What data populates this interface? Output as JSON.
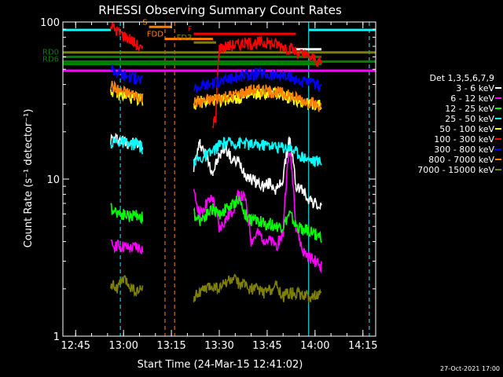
{
  "chart_data": {
    "type": "line",
    "title": "RHESSI Observing Summary Count Rates",
    "xlabel": "Start Time (24-Mar-15 12:41:02)",
    "ylabel": "Count Rate (s⁻¹ detector⁻¹)",
    "yscale": "log",
    "ylim": [
      1,
      100
    ],
    "xlim": [
      "12:41",
      "14:19"
    ],
    "x_ticks": [
      "12:45",
      "13:00",
      "13:15",
      "13:30",
      "13:45",
      "14:00",
      "14:15"
    ],
    "y_ticks": [
      "1",
      "10",
      "100"
    ],
    "legend_title": "Det 1,3,5,6,7,9",
    "legend_position": "right",
    "timestamp": "27-Oct-2021 17:00",
    "series": [
      {
        "name": "3 - 6 keV",
        "color": "#ffffff",
        "segments": [
          {
            "x": [
              "12:56",
              "12:58",
              "13:00",
              "13:02",
              "13:04",
              "13:06"
            ],
            "y": [
              18,
              18,
              17.5,
              17,
              17,
              16
            ]
          },
          {
            "x": [
              "13:22",
              "13:24",
              "13:26",
              "13:28",
              "13:30",
              "13:32",
              "13:34",
              "13:36",
              "13:38",
              "13:40",
              "13:42",
              "13:44",
              "13:46",
              "13:48",
              "13:50",
              "13:52",
              "13:54",
              "13:56",
              "13:58",
              "14:00",
              "14:02"
            ],
            "y": [
              12,
              17,
              14,
              11,
              14,
              16,
              13,
              13,
              11,
              10,
              9.5,
              9,
              9.5,
              8.5,
              10,
              18,
              9,
              8.5,
              7.5,
              7,
              6.5
            ]
          }
        ]
      },
      {
        "name": "6 - 12 keV",
        "color": "#ff00ff",
        "segments": [
          {
            "x": [
              "12:56",
              "12:58",
              "13:00",
              "13:02",
              "13:04",
              "13:06"
            ],
            "y": [
              3.8,
              3.8,
              3.7,
              3.6,
              3.7,
              3.6
            ]
          },
          {
            "x": [
              "13:22",
              "13:24",
              "13:26",
              "13:28",
              "13:30",
              "13:32",
              "13:34",
              "13:36",
              "13:38",
              "13:40",
              "13:42",
              "13:44",
              "13:46",
              "13:48",
              "13:50",
              "13:52",
              "13:54",
              "13:56",
              "13:58",
              "14:00",
              "14:02"
            ],
            "y": [
              8,
              6,
              7,
              7.5,
              4.8,
              5.5,
              6.2,
              8,
              7.5,
              4,
              4.5,
              4.2,
              4,
              3.8,
              4.5,
              15,
              5,
              3.5,
              3.2,
              3,
              2.8
            ]
          }
        ]
      },
      {
        "name": "12 - 25 keV",
        "color": "#00ff00",
        "segments": [
          {
            "x": [
              "12:56",
              "12:58",
              "13:00",
              "13:02",
              "13:04",
              "13:06"
            ],
            "y": [
              6.5,
              6.2,
              6,
              5.8,
              6,
              5.7
            ]
          },
          {
            "x": [
              "13:22",
              "13:24",
              "13:26",
              "13:28",
              "13:30",
              "13:32",
              "13:34",
              "13:36",
              "13:38",
              "13:40",
              "13:42",
              "13:44",
              "13:46",
              "13:48",
              "13:50",
              "13:52",
              "13:54",
              "13:56",
              "13:58",
              "14:00",
              "14:02"
            ],
            "y": [
              6,
              5.5,
              6,
              6.5,
              6,
              6.5,
              6.8,
              7.5,
              6,
              5.5,
              5.5,
              5.2,
              5.2,
              5,
              5,
              6,
              5,
              4.8,
              4.7,
              4.5,
              4.3
            ]
          }
        ]
      },
      {
        "name": "25 - 50 keV",
        "color": "#00ffff",
        "segments": [
          {
            "x": [
              "12:56",
              "12:58",
              "13:00",
              "13:02",
              "13:04",
              "13:06"
            ],
            "y": [
              17,
              17.5,
              17,
              16.5,
              17,
              15.5
            ]
          },
          {
            "x": [
              "13:22",
              "13:24",
              "13:26",
              "13:28",
              "13:30",
              "13:32",
              "13:34",
              "13:36",
              "13:38",
              "13:40",
              "13:42",
              "13:44",
              "13:46",
              "13:48",
              "13:50",
              "13:52",
              "13:54",
              "13:56",
              "13:58",
              "14:00",
              "14:02"
            ],
            "y": [
              13,
              13.5,
              14,
              15,
              16.5,
              17,
              17,
              17,
              17,
              16.5,
              16.5,
              16.5,
              16.5,
              16,
              16,
              16,
              15,
              14,
              13.5,
              13,
              13
            ]
          }
        ]
      },
      {
        "name": "50 - 100 keV",
        "color": "#ffff00",
        "segments": [
          {
            "x": [
              "12:56",
              "12:58",
              "13:00",
              "13:02",
              "13:04",
              "13:06"
            ],
            "y": [
              37,
              35,
              34,
              33,
              33,
              32
            ]
          },
          {
            "x": [
              "13:22",
              "13:24",
              "13:26",
              "13:28",
              "13:30",
              "13:32",
              "13:34",
              "13:36",
              "13:38",
              "13:40",
              "13:42",
              "13:44",
              "13:46",
              "13:48",
              "13:50",
              "13:52",
              "13:54",
              "13:56",
              "13:58",
              "14:00",
              "14:02"
            ],
            "y": [
              30,
              31,
              31,
              32,
              32,
              32,
              33,
              33,
              33,
              34,
              35,
              35,
              35,
              35,
              34,
              33,
              32,
              31,
              30,
              30,
              29
            ]
          }
        ]
      },
      {
        "name": "100 - 300 keV",
        "color": "#ff0000",
        "segments": [
          {
            "x": [
              "12:56",
              "12:58",
              "13:00",
              "13:02",
              "13:04",
              "13:06"
            ],
            "y": [
              95,
              88,
              82,
              78,
              72,
              65
            ]
          },
          {
            "x": [
              "13:28",
              "13:29",
              "13:30",
              "13:32",
              "13:34",
              "13:36",
              "13:38",
              "13:40",
              "13:42",
              "13:44",
              "13:46",
              "13:48",
              "13:50",
              "13:52",
              "13:54",
              "13:56",
              "13:58",
              "14:00",
              "14:02"
            ],
            "y": [
              22,
              25,
              68,
              70,
              71,
              72,
              73,
              73,
              74,
              74,
              73,
              72,
              70,
              68,
              65,
              62,
              60,
              58,
              55
            ]
          }
        ]
      },
      {
        "name": "300 - 800 keV",
        "color": "#0000ff",
        "segments": [
          {
            "x": [
              "12:56",
              "12:58",
              "13:00",
              "13:02",
              "13:04",
              "13:06"
            ],
            "y": [
              52,
              48,
              46,
              45,
              44,
              42
            ]
          },
          {
            "x": [
              "13:22",
              "13:24",
              "13:26",
              "13:28",
              "13:30",
              "13:32",
              "13:34",
              "13:36",
              "13:38",
              "13:40",
              "13:42",
              "13:44",
              "13:46",
              "13:48",
              "13:50",
              "13:52",
              "13:54",
              "13:56",
              "13:58",
              "14:00",
              "14:02"
            ],
            "y": [
              38,
              39,
              40,
              41,
              42,
              43,
              44,
              45,
              46,
              46,
              47,
              47,
              46,
              46,
              45,
              44,
              43,
              42,
              41,
              40,
              39
            ]
          }
        ]
      },
      {
        "name": "800 - 7000 keV",
        "color": "#ff8000",
        "segments": [
          {
            "x": [
              "12:56",
              "12:58",
              "13:00",
              "13:02",
              "13:04",
              "13:06"
            ],
            "y": [
              40,
              37,
              36,
              35,
              34,
              33
            ]
          },
          {
            "x": [
              "13:22",
              "13:24",
              "13:26",
              "13:28",
              "13:30",
              "13:32",
              "13:34",
              "13:36",
              "13:38",
              "13:40",
              "13:42",
              "13:44",
              "13:46",
              "13:48",
              "13:50",
              "13:52",
              "13:54",
              "13:56",
              "13:58",
              "14:00",
              "14:02"
            ],
            "y": [
              31,
              31,
              32,
              32,
              33,
              34,
              34,
              35,
              36,
              37,
              37,
              37,
              36,
              36,
              35,
              34,
              33,
              32,
              31,
              30,
              29
            ]
          }
        ]
      },
      {
        "name": "7000 - 15000 keV",
        "color": "#808000",
        "segments": [
          {
            "x": [
              "12:56",
              "12:58",
              "13:00",
              "13:02",
              "13:04",
              "13:06"
            ],
            "y": [
              2.2,
              2.0,
              2.3,
              2.1,
              1.9,
              2.0
            ]
          },
          {
            "x": [
              "13:22",
              "13:24",
              "13:26",
              "13:28",
              "13:30",
              "13:32",
              "13:34",
              "13:36",
              "13:38",
              "13:40",
              "13:42",
              "13:44",
              "13:46",
              "13:48",
              "13:50",
              "13:52",
              "13:54",
              "13:56",
              "13:58",
              "14:00",
              "14:02"
            ],
            "y": [
              1.8,
              1.9,
              2.0,
              2.1,
              2.0,
              2.2,
              2.3,
              2.2,
              2.1,
              2.0,
              2.0,
              1.9,
              2.0,
              2.1,
              1.8,
              1.9,
              1.9,
              1.8,
              1.8,
              1.8,
              1.8
            ]
          }
        ]
      }
    ],
    "flag_bars": [
      {
        "label": "S",
        "color": "#ff8000",
        "x_start": "13:08",
        "x_end": "13:15",
        "y": 93
      },
      {
        "label": "F",
        "color": "#ff0000",
        "x_start": "13:22",
        "x_end": "13:54",
        "y": 84
      },
      {
        "label": "FDD",
        "color": "#ff8000",
        "x_start": "13:13",
        "x_end": "13:28",
        "y": 78
      },
      {
        "label": "FD3",
        "color": "#808000",
        "x_start": "13:22",
        "x_end": "13:29",
        "y": 74
      },
      {
        "label": "RD0",
        "color": "#008000",
        "x_start": "12:41",
        "x_end": "14:02",
        "y": 60
      },
      {
        "label": "RD6",
        "color": "#008000",
        "x_start": "12:41",
        "x_end": "14:02",
        "y": 54
      },
      {
        "label": "",
        "color": "#ffffff",
        "x_start": "13:54",
        "x_end": "14:02",
        "y": 67
      }
    ],
    "level_lines": [
      {
        "color": "#00ffff",
        "x_start": "12:41",
        "x_end": "12:56",
        "y": 89
      },
      {
        "color": "#00ffff",
        "x_start": "13:58",
        "x_end": "14:19",
        "y": 89
      },
      {
        "color": "#808000",
        "x_start": "12:41",
        "x_end": "14:19",
        "y": 64
      },
      {
        "color": "#008000",
        "x_start": "12:41",
        "x_end": "14:19",
        "y": 56
      },
      {
        "color": "#ff00ff",
        "x_start": "12:41",
        "x_end": "14:19",
        "y": 49
      }
    ],
    "vertical_markers": [
      {
        "color": "#00ffff",
        "style": "dashed",
        "x": "12:59"
      },
      {
        "color": "#ff8000",
        "style": "dashed",
        "x": "13:13"
      },
      {
        "color": "#ff8000",
        "style": "dashed",
        "x": "13:16"
      },
      {
        "color": "#00ffff",
        "style": "dashed",
        "x": "14:17"
      },
      {
        "color": "#00ffff",
        "style": "solid",
        "x": "13:58"
      },
      {
        "color": "#00ffff",
        "style": "solid",
        "x": "12:41"
      }
    ]
  }
}
